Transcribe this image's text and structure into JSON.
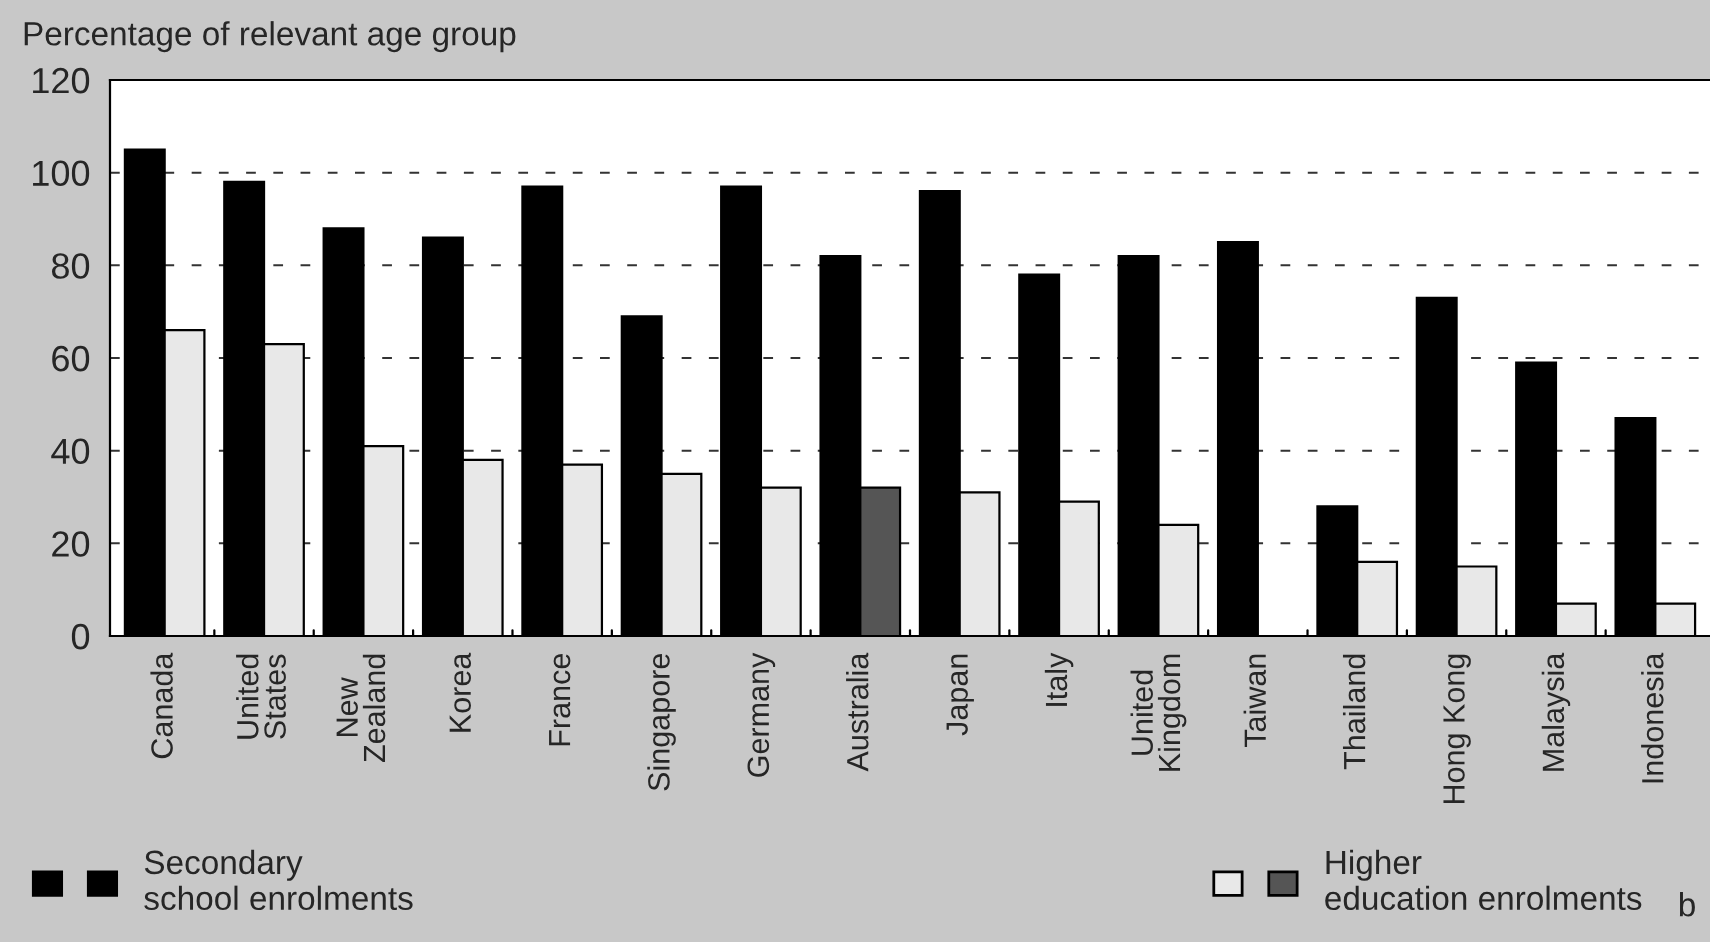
{
  "chart_data": {
    "type": "bar",
    "ylabel": "Percentage of relevant age group",
    "categories": [
      "Canada",
      "United\nStates",
      "New\nZealand",
      "Korea",
      "France",
      "Singapore",
      "Germany",
      "Australia",
      "Japan",
      "Italy",
      "United\nKingdom",
      "Taiwan",
      "Thailand",
      "Hong Kong",
      "Malaysia",
      "Indonesia"
    ],
    "series": [
      {
        "name": "Secondary\nschool enrolments",
        "color": "#000000",
        "values": [
          105,
          98,
          88,
          86,
          97,
          69,
          97,
          82,
          96,
          78,
          82,
          85,
          28,
          73,
          59,
          47
        ]
      },
      {
        "name": "Higher\neducation enrolments",
        "colors": [
          "#e8e8e8",
          "#e8e8e8",
          "#e8e8e8",
          "#e8e8e8",
          "#e8e8e8",
          "#e8e8e8",
          "#e8e8e8",
          "#555555",
          "#e8e8e8",
          "#e8e8e8",
          "#e8e8e8",
          "#e8e8e8",
          "#e8e8e8",
          "#e8e8e8",
          "#e8e8e8",
          "#e8e8e8"
        ],
        "values": [
          66,
          63,
          41,
          38,
          37,
          35,
          32,
          32,
          31,
          29,
          24,
          null,
          16,
          15,
          7,
          7
        ]
      }
    ],
    "ylim": [
      0,
      120
    ],
    "yticks": [
      0,
      20,
      40,
      60,
      80,
      100,
      120
    ],
    "grid": "y",
    "legend": "bottom",
    "annotations": [
      "b"
    ]
  }
}
